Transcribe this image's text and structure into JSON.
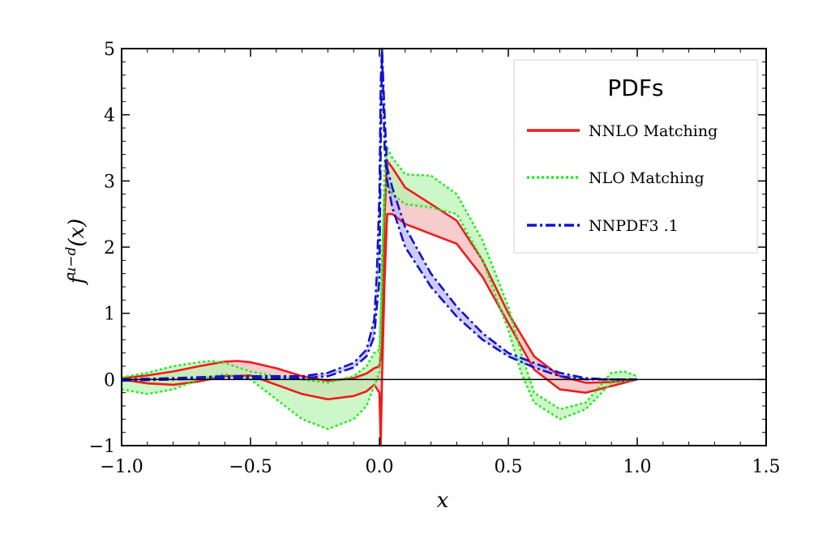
{
  "chart_data": {
    "type": "line",
    "title": "",
    "xlabel": "x",
    "ylabel": "f^{u-d}(x)",
    "ylabel_main": "f",
    "ylabel_sup": "u−d",
    "ylabel_arg": "(x)",
    "xlim": [
      -1.0,
      1.5
    ],
    "ylim": [
      -1,
      5
    ],
    "x_ticks": [
      -1.0,
      -0.5,
      0.0,
      0.5,
      1.0,
      1.5
    ],
    "x_tick_labels": [
      "−1.0",
      "−0.5",
      "0.0",
      "0.5",
      "1.0",
      "1.5"
    ],
    "y_ticks": [
      -1,
      0,
      1,
      2,
      3,
      4,
      5
    ],
    "y_tick_labels": [
      "−1",
      "0",
      "1",
      "2",
      "3",
      "4",
      "5"
    ],
    "legend": {
      "title": "PDFs",
      "position": "top-right"
    },
    "series": [
      {
        "name": "NNLO Matching",
        "color": "#ee1c1c",
        "fill": "#f4b6b6",
        "dash": "solid",
        "upper": [
          [
            -1.0,
            0.02
          ],
          [
            -0.9,
            0.06
          ],
          [
            -0.8,
            0.12
          ],
          [
            -0.7,
            0.2
          ],
          [
            -0.6,
            0.27
          ],
          [
            -0.55,
            0.28
          ],
          [
            -0.5,
            0.26
          ],
          [
            -0.4,
            0.17
          ],
          [
            -0.3,
            0.05
          ],
          [
            -0.2,
            -0.02
          ],
          [
            -0.1,
            0.02
          ],
          [
            -0.05,
            0.09
          ],
          [
            -0.02,
            0.17
          ],
          [
            0.0,
            0.2
          ],
          [
            0.01,
            0.5
          ],
          [
            0.02,
            2.5
          ],
          [
            0.03,
            3.3
          ],
          [
            0.05,
            3.2
          ],
          [
            0.1,
            2.9
          ],
          [
            0.2,
            2.65
          ],
          [
            0.3,
            2.4
          ],
          [
            0.4,
            1.8
          ],
          [
            0.5,
            1.0
          ],
          [
            0.6,
            0.35
          ],
          [
            0.7,
            0.05
          ],
          [
            0.8,
            -0.05
          ],
          [
            0.9,
            -0.04
          ],
          [
            1.0,
            0.0
          ]
        ],
        "lower": [
          [
            -1.0,
            0.0
          ],
          [
            -0.9,
            -0.06
          ],
          [
            -0.8,
            -0.08
          ],
          [
            -0.7,
            -0.03
          ],
          [
            -0.6,
            0.05
          ],
          [
            -0.5,
            0.06
          ],
          [
            -0.4,
            -0.08
          ],
          [
            -0.3,
            -0.22
          ],
          [
            -0.2,
            -0.3
          ],
          [
            -0.1,
            -0.25
          ],
          [
            -0.05,
            -0.18
          ],
          [
            -0.02,
            -0.08
          ],
          [
            0.0,
            -0.2
          ],
          [
            0.005,
            -1.0
          ],
          [
            0.01,
            0.0
          ],
          [
            0.02,
            1.5
          ],
          [
            0.03,
            2.5
          ],
          [
            0.05,
            2.5
          ],
          [
            0.1,
            2.35
          ],
          [
            0.2,
            2.2
          ],
          [
            0.3,
            2.05
          ],
          [
            0.4,
            1.55
          ],
          [
            0.5,
            0.85
          ],
          [
            0.6,
            0.15
          ],
          [
            0.7,
            -0.15
          ],
          [
            0.8,
            -0.2
          ],
          [
            0.9,
            -0.1
          ],
          [
            1.0,
            0.0
          ]
        ]
      },
      {
        "name": "NLO Matching",
        "color": "#22ee22",
        "fill": "#b8f3b0",
        "dash": "dotted",
        "upper": [
          [
            -1.0,
            0.03
          ],
          [
            -0.9,
            0.1
          ],
          [
            -0.8,
            0.2
          ],
          [
            -0.7,
            0.26
          ],
          [
            -0.65,
            0.28
          ],
          [
            -0.6,
            0.25
          ],
          [
            -0.5,
            0.12
          ],
          [
            -0.4,
            0.05
          ],
          [
            -0.3,
            0.0
          ],
          [
            -0.2,
            -0.05
          ],
          [
            -0.1,
            0.05
          ],
          [
            -0.05,
            0.2
          ],
          [
            -0.02,
            0.4
          ],
          [
            0.0,
            0.45
          ],
          [
            0.01,
            1.5
          ],
          [
            0.02,
            3.3
          ],
          [
            0.03,
            3.5
          ],
          [
            0.05,
            3.35
          ],
          [
            0.1,
            3.1
          ],
          [
            0.2,
            3.08
          ],
          [
            0.3,
            2.8
          ],
          [
            0.4,
            2.1
          ],
          [
            0.5,
            1.1
          ],
          [
            0.55,
            0.4
          ],
          [
            0.6,
            -0.2
          ],
          [
            0.7,
            -0.45
          ],
          [
            0.8,
            -0.35
          ],
          [
            0.9,
            0.1
          ],
          [
            0.95,
            0.12
          ],
          [
            1.0,
            0.05
          ]
        ],
        "lower": [
          [
            -1.0,
            -0.15
          ],
          [
            -0.9,
            -0.22
          ],
          [
            -0.8,
            -0.15
          ],
          [
            -0.7,
            0.0
          ],
          [
            -0.6,
            0.08
          ],
          [
            -0.5,
            0.0
          ],
          [
            -0.4,
            -0.3
          ],
          [
            -0.3,
            -0.6
          ],
          [
            -0.2,
            -0.75
          ],
          [
            -0.1,
            -0.6
          ],
          [
            -0.05,
            -0.4
          ],
          [
            -0.02,
            -0.1
          ],
          [
            0.0,
            0.1
          ],
          [
            0.01,
            1.8
          ],
          [
            0.02,
            2.8
          ],
          [
            0.03,
            3.0
          ],
          [
            0.05,
            2.8
          ],
          [
            0.1,
            2.65
          ],
          [
            0.2,
            2.6
          ],
          [
            0.3,
            2.5
          ],
          [
            0.4,
            1.8
          ],
          [
            0.5,
            0.75
          ],
          [
            0.55,
            0.1
          ],
          [
            0.6,
            -0.35
          ],
          [
            0.7,
            -0.6
          ],
          [
            0.8,
            -0.45
          ],
          [
            0.9,
            -0.05
          ],
          [
            1.0,
            0.0
          ]
        ]
      },
      {
        "name": "NNPDF3 .1",
        "color": "#1212cc",
        "fill": "#b6b6f0",
        "dash": "dashdot",
        "upper": [
          [
            -1.0,
            0.0
          ],
          [
            -0.8,
            0.02
          ],
          [
            -0.6,
            0.05
          ],
          [
            -0.4,
            0.05
          ],
          [
            -0.3,
            0.05
          ],
          [
            -0.2,
            0.1
          ],
          [
            -0.1,
            0.25
          ],
          [
            -0.05,
            0.45
          ],
          [
            -0.02,
            0.9
          ],
          [
            -0.01,
            1.6
          ],
          [
            0.0,
            2.8
          ],
          [
            0.005,
            4.5
          ],
          [
            0.01,
            5.0
          ],
          [
            0.02,
            4.0
          ],
          [
            0.03,
            3.2
          ],
          [
            0.05,
            2.9
          ],
          [
            0.1,
            2.3
          ],
          [
            0.2,
            1.6
          ],
          [
            0.3,
            1.1
          ],
          [
            0.4,
            0.7
          ],
          [
            0.5,
            0.4
          ],
          [
            0.6,
            0.25
          ],
          [
            0.7,
            0.1
          ],
          [
            0.8,
            0.02
          ],
          [
            0.9,
            0.0
          ],
          [
            1.0,
            0.0
          ]
        ],
        "lower": [
          [
            -1.0,
            -0.02
          ],
          [
            -0.8,
            0.0
          ],
          [
            -0.6,
            0.02
          ],
          [
            -0.4,
            0.02
          ],
          [
            -0.3,
            0.02
          ],
          [
            -0.2,
            0.05
          ],
          [
            -0.1,
            0.18
          ],
          [
            -0.05,
            0.35
          ],
          [
            -0.02,
            0.65
          ],
          [
            -0.01,
            1.1
          ],
          [
            0.0,
            1.5
          ],
          [
            0.005,
            3.5
          ],
          [
            0.01,
            5.0
          ],
          [
            0.02,
            3.5
          ],
          [
            0.03,
            3.0
          ],
          [
            0.05,
            2.6
          ],
          [
            0.1,
            2.0
          ],
          [
            0.2,
            1.4
          ],
          [
            0.3,
            0.95
          ],
          [
            0.4,
            0.6
          ],
          [
            0.5,
            0.35
          ],
          [
            0.6,
            0.18
          ],
          [
            0.7,
            0.05
          ],
          [
            0.8,
            0.0
          ],
          [
            0.9,
            0.0
          ],
          [
            1.0,
            0.0
          ]
        ]
      }
    ]
  }
}
